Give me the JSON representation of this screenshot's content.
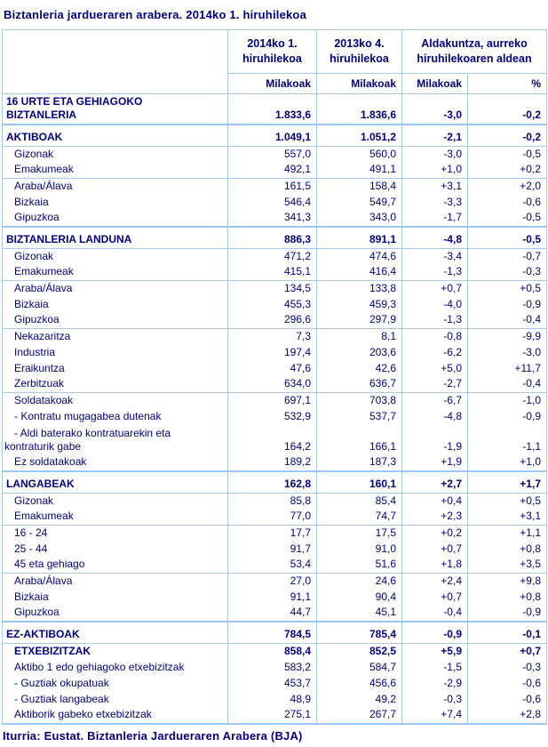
{
  "title": "Biztanleria jardueraren arabera. 2014ko 1. hiruhilekoa",
  "source": "Iturria: Eustat. Biztanleria Jardueraren Arabera (BJA)",
  "colors": {
    "text": "#000080",
    "border": "#a6caec"
  },
  "table": {
    "column_headers": {
      "period1": "2014ko 1.\nhiruhilekoa",
      "period2": "2013ko 4.\nhiruhilekoa",
      "change": "Aldakuntza, aurreko\nhiruhilekoaren aldean"
    },
    "unit_headers": [
      "Milakoak",
      "Milakoak",
      "Milakoak",
      "%"
    ],
    "rows": [
      {
        "label": "16 URTE ETA GEHIAGOKO\nBIZTANLERIA",
        "bold": true,
        "dbl": true,
        "values": [
          "1.833,6",
          "1.836,6",
          "-3,0",
          "-0,2"
        ]
      },
      {
        "type": "spacer"
      },
      {
        "label": "AKTIBOAK",
        "bold": true,
        "values": [
          "1.049,1",
          "1.051,2",
          "-2,1",
          "-0,2"
        ]
      },
      {
        "label": "Gizonak",
        "indent": true,
        "line": true,
        "values": [
          "557,0",
          "560,0",
          "-3,0",
          "-0,5"
        ]
      },
      {
        "label": "Emakumeak",
        "indent": true,
        "values": [
          "492,1",
          "491,1",
          "+1,0",
          "+0,2"
        ]
      },
      {
        "label": "Araba/Álava",
        "indent": true,
        "line": true,
        "values": [
          "161,5",
          "158,4",
          "+3,1",
          "+2,0"
        ]
      },
      {
        "label": "Bizkaia",
        "indent": true,
        "values": [
          "546,4",
          "549,7",
          "-3,3",
          "-0,6"
        ]
      },
      {
        "label": "Gipuzkoa",
        "indent": true,
        "values": [
          "341,3",
          "343,0",
          "-1,7",
          "-0,5"
        ]
      },
      {
        "type": "spacer"
      },
      {
        "label": "BIZTANLERIA LANDUNA",
        "bold": true,
        "values": [
          "886,3",
          "891,1",
          "-4,8",
          "-0,5"
        ]
      },
      {
        "label": "Gizonak",
        "indent": true,
        "line": true,
        "values": [
          "471,2",
          "474,6",
          "-3,4",
          "-0,7"
        ]
      },
      {
        "label": "Emakumeak",
        "indent": true,
        "values": [
          "415,1",
          "416,4",
          "-1,3",
          "-0,3"
        ]
      },
      {
        "label": "Araba/Álava",
        "indent": true,
        "line": true,
        "values": [
          "134,5",
          "133,8",
          "+0,7",
          "+0,5"
        ]
      },
      {
        "label": "Bizkaia",
        "indent": true,
        "values": [
          "455,3",
          "459,3",
          "-4,0",
          "-0,9"
        ]
      },
      {
        "label": "Gipuzkoa",
        "indent": true,
        "values": [
          "296,6",
          "297,9",
          "-1,3",
          "-0,4"
        ]
      },
      {
        "label": "Nekazaritza",
        "indent": true,
        "line": true,
        "values": [
          "7,3",
          "8,1",
          "-0,8",
          "-9,9"
        ]
      },
      {
        "label": "Industria",
        "indent": true,
        "values": [
          "197,4",
          "203,6",
          "-6,2",
          "-3,0"
        ]
      },
      {
        "label": "Eraikuntza",
        "indent": true,
        "values": [
          "47,6",
          "42,6",
          "+5,0",
          "+11,7"
        ]
      },
      {
        "label": "Zerbitzuak",
        "indent": true,
        "values": [
          "634,0",
          "636,7",
          "-2,7",
          "-0,4"
        ]
      },
      {
        "label": "Soldatakoak",
        "indent": true,
        "line": true,
        "values": [
          "697,1",
          "703,8",
          "-6,7",
          "-1,0"
        ]
      },
      {
        "label": "- Kontratu mugagabea dutenak",
        "indent": true,
        "values": [
          "532,9",
          "537,7",
          "-4,8",
          "-0,9"
        ]
      },
      {
        "label": "- Aldi baterako kontratuarekin eta\nkontraturik gabe",
        "hang": true,
        "dbl": true,
        "values": [
          "164,2",
          "166,1",
          "-1,9",
          "-1,1"
        ]
      },
      {
        "label": "Ez soldatakoak",
        "indent": true,
        "values": [
          "189,2",
          "187,3",
          "+1,9",
          "+1,0"
        ]
      },
      {
        "type": "spacer"
      },
      {
        "label": "LANGABEAK",
        "bold": true,
        "values": [
          "162,8",
          "160,1",
          "+2,7",
          "+1,7"
        ]
      },
      {
        "label": "Gizonak",
        "indent": true,
        "line": true,
        "values": [
          "85,8",
          "85,4",
          "+0,4",
          "+0,5"
        ]
      },
      {
        "label": "Emakumeak",
        "indent": true,
        "values": [
          "77,0",
          "74,7",
          "+2,3",
          "+3,1"
        ]
      },
      {
        "label": "16 - 24",
        "indent": true,
        "line": true,
        "values": [
          "17,7",
          "17,5",
          "+0,2",
          "+1,1"
        ]
      },
      {
        "label": "25 - 44",
        "indent": true,
        "values": [
          "91,7",
          "91,0",
          "+0,7",
          "+0,8"
        ]
      },
      {
        "label": "45 eta gehiago",
        "indent": true,
        "values": [
          "53,4",
          "51,6",
          "+1,8",
          "+3,5"
        ]
      },
      {
        "label": "Araba/Álava",
        "indent": true,
        "line": true,
        "values": [
          "27,0",
          "24,6",
          "+2,4",
          "+9,8"
        ]
      },
      {
        "label": "Bizkaia",
        "indent": true,
        "values": [
          "91,1",
          "90,4",
          "+0,7",
          "+0,8"
        ]
      },
      {
        "label": "Gipuzkoa",
        "indent": true,
        "values": [
          "44,7",
          "45,1",
          "-0,4",
          "-0,9"
        ]
      },
      {
        "type": "spacer"
      },
      {
        "label": "EZ-AKTIBOAK",
        "bold": true,
        "values": [
          "784,5",
          "785,4",
          "-0,9",
          "-0,1"
        ]
      },
      {
        "label": "ETXEBIZITZAK",
        "bold": true,
        "indent": true,
        "line": true,
        "values": [
          "858,4",
          "852,5",
          "+5,9",
          "+0,7"
        ]
      },
      {
        "label": "Aktibo 1 edo gehiagoko etxebizitzak",
        "indent": true,
        "values": [
          "583,2",
          "584,7",
          "-1,5",
          "-0,3"
        ]
      },
      {
        "label": "- Guztiak okupatuak",
        "indent": true,
        "values": [
          "453,7",
          "456,6",
          "-2,9",
          "-0,6"
        ]
      },
      {
        "label": "- Guztiak langabeak",
        "indent": true,
        "values": [
          "48,9",
          "49,2",
          "-0,3",
          "-0,6"
        ]
      },
      {
        "label": "Aktiborik gabeko etxebizitzak",
        "indent": true,
        "values": [
          "275,1",
          "267,7",
          "+7,4",
          "+2,8"
        ]
      }
    ]
  }
}
